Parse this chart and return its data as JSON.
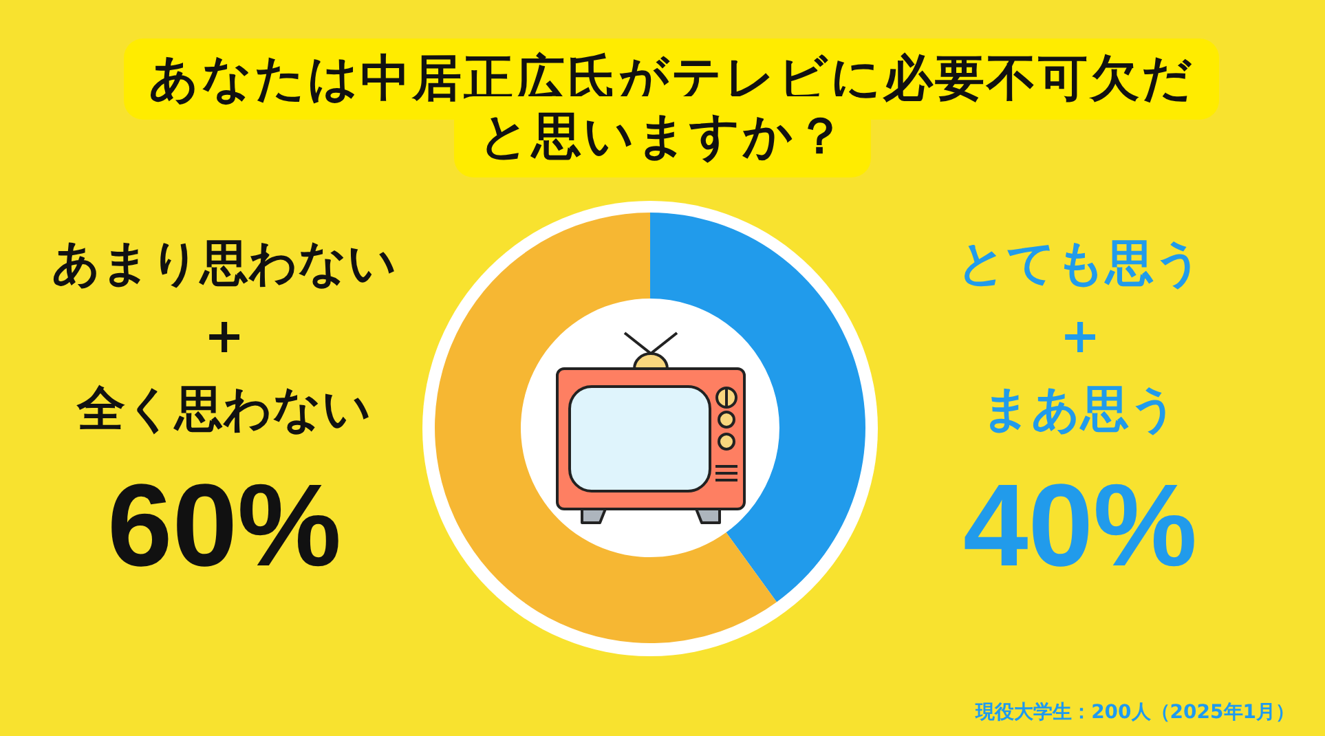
{
  "chart_data": {
    "type": "donut",
    "title": "あなたは中居正広氏がテレビに必要不可欠だと思いますか？",
    "categories": [
      "とても思う\n+\nまあ思う",
      "あまり思わない\n+\n全く思わない"
    ],
    "values": [
      40,
      60
    ],
    "colors": [
      "#219beb",
      "#f6b733"
    ],
    "value_labels": [
      "40%",
      "60%"
    ],
    "annotations": [
      "現役大学生：200人（2025年1月）"
    ]
  }
}
